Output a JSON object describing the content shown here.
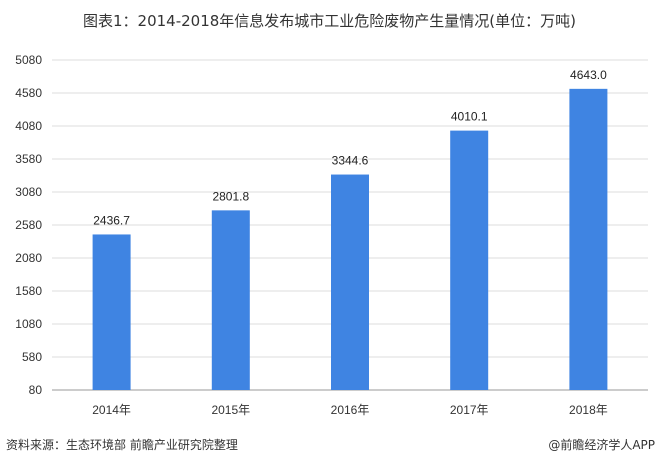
{
  "chart_data": {
    "type": "bar",
    "title": "图表1：2014-2018年信息发布城市工业危险废物产生量情况(单位：万吨)",
    "categories": [
      "2014年",
      "2015年",
      "2016年",
      "2017年",
      "2018年"
    ],
    "values": [
      2436.7,
      2801.8,
      3344.6,
      4010.1,
      4643.0
    ],
    "value_labels": [
      "2436.7",
      "2801.8",
      "3344.6",
      "4010.1",
      "4643.0"
    ],
    "xlabel": "",
    "ylabel": "",
    "ylim": [
      80,
      5080
    ],
    "yticks": [
      80,
      580,
      1080,
      1580,
      2080,
      2580,
      3080,
      3580,
      4080,
      4580,
      5080
    ],
    "grid": true,
    "bar_color": "#3f84e2"
  },
  "footer": {
    "source": "资料来源：生态环境部 前瞻产业研究院整理",
    "credit": "@前瞻经济学人APP"
  }
}
